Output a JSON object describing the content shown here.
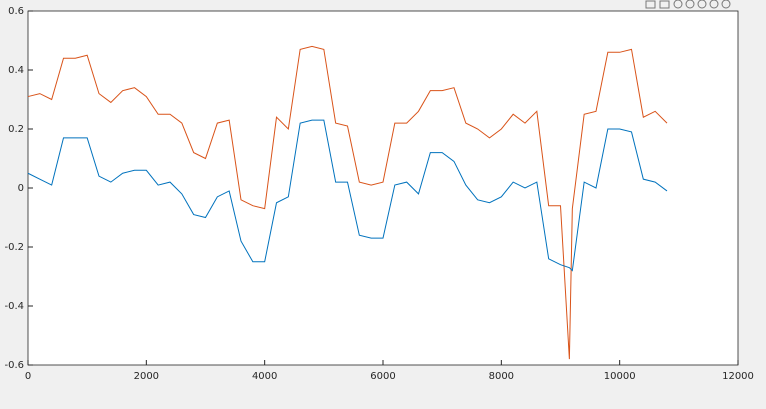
{
  "chart_data": {
    "type": "line",
    "x": [
      0,
      200,
      400,
      600,
      800,
      1000,
      1200,
      1400,
      1600,
      1800,
      2000,
      2200,
      2400,
      2600,
      2800,
      3000,
      3200,
      3400,
      3600,
      3800,
      4000,
      4200,
      4400,
      4600,
      4800,
      5000,
      5200,
      5400,
      5600,
      5800,
      6000,
      6200,
      6400,
      6600,
      6800,
      7000,
      7200,
      7400,
      7600,
      7800,
      8000,
      8200,
      8400,
      8600,
      8800,
      9000,
      9150,
      9200,
      9400,
      9600,
      9800,
      10000,
      10200,
      10400,
      10600,
      10800
    ],
    "series": [
      {
        "color": "#d95319",
        "values": [
          0.31,
          0.32,
          0.3,
          0.44,
          0.44,
          0.45,
          0.32,
          0.29,
          0.33,
          0.34,
          0.31,
          0.25,
          0.25,
          0.22,
          0.12,
          0.1,
          0.22,
          0.23,
          -0.04,
          -0.06,
          -0.07,
          0.24,
          0.2,
          0.47,
          0.48,
          0.47,
          0.22,
          0.21,
          0.02,
          0.01,
          0.02,
          0.22,
          0.22,
          0.26,
          0.33,
          0.33,
          0.34,
          0.22,
          0.2,
          0.17,
          0.2,
          0.25,
          0.22,
          0.26,
          -0.06,
          -0.06,
          -0.58,
          -0.07,
          0.25,
          0.26,
          0.46,
          0.46,
          0.47,
          0.24,
          0.26,
          0.22
        ]
      },
      {
        "color": "#0072bd",
        "values": [
          0.05,
          0.03,
          0.01,
          0.17,
          0.17,
          0.17,
          0.04,
          0.02,
          0.05,
          0.06,
          0.06,
          0.01,
          0.02,
          -0.02,
          -0.09,
          -0.1,
          -0.03,
          -0.01,
          -0.18,
          -0.25,
          -0.25,
          -0.05,
          -0.03,
          0.22,
          0.23,
          0.23,
          0.02,
          0.02,
          -0.16,
          -0.17,
          -0.17,
          0.01,
          0.02,
          -0.02,
          0.12,
          0.12,
          0.09,
          0.01,
          -0.04,
          -0.05,
          -0.03,
          0.02,
          0.0,
          0.02,
          -0.24,
          -0.26,
          -0.27,
          -0.28,
          0.02,
          0.0,
          0.2,
          0.2,
          0.19,
          0.03,
          0.02,
          -0.01
        ]
      }
    ],
    "xlim": [
      0,
      12000
    ],
    "xticks": [
      0,
      2000,
      4000,
      6000,
      8000,
      10000,
      12000
    ],
    "ylim": [
      -0.6,
      0.6
    ],
    "yticks": [
      -0.6,
      -0.4,
      -0.2,
      0,
      0.2,
      0.4,
      0.6
    ],
    "grid": false
  }
}
